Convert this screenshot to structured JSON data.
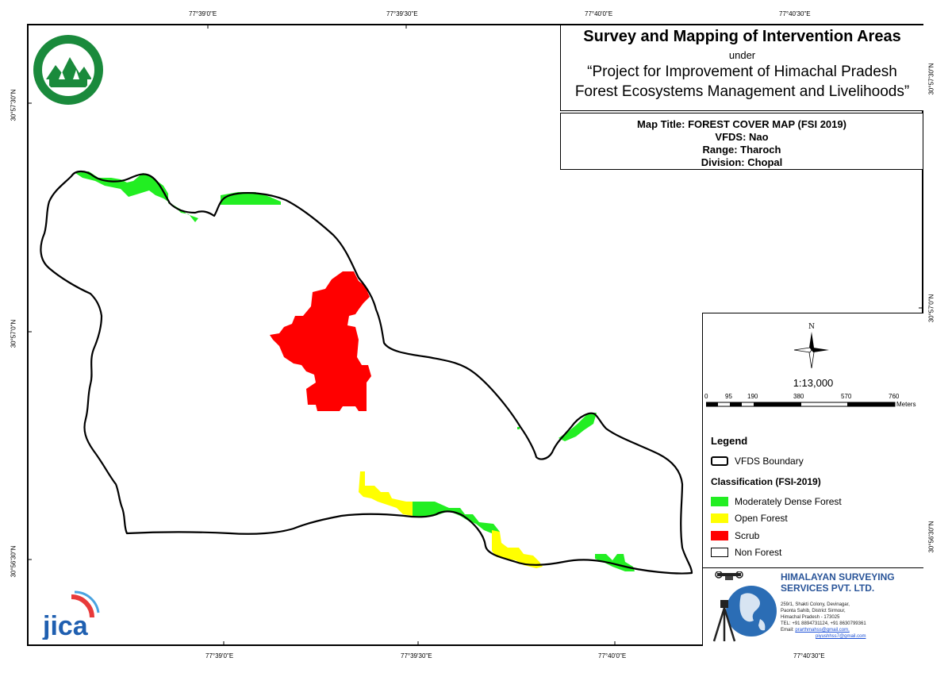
{
  "coords": {
    "top": [
      "77°39'0\"E",
      "77°39'30\"E",
      "77°40'0\"E",
      "77°40'30\"E"
    ],
    "bottom": [
      "77°39'0\"E",
      "77°39'30\"E",
      "77°40'0\"E",
      "77°40'30\"E"
    ],
    "left": [
      "30°57'30\"N",
      "30°57'0\"N",
      "30°56'30\"N"
    ],
    "right": [
      "30°57'30\"N",
      "30°57'0\"N",
      "30°56'30\"N"
    ]
  },
  "title": {
    "main": "Survey and Mapping of Intervention Areas",
    "under": "under",
    "project_line1": "“Project for Improvement of Himachal Pradesh",
    "project_line2": "Forest Ecosystems Management and Livelihoods”"
  },
  "info": {
    "map_title": "Map Title: FOREST COVER MAP (FSI 2019)",
    "vfds": "VFDS: Nao",
    "range": "Range: Tharoch",
    "division": "Division: Chopal"
  },
  "north_label": "N",
  "scale": {
    "ratio": "1:13,000",
    "ticks": [
      "0",
      "95",
      "190",
      "380",
      "570",
      "760"
    ],
    "unit": "Meters"
  },
  "legend": {
    "title": "Legend",
    "boundary_label": "VFDS Boundary",
    "classification_title": "Classification (FSI-2019)",
    "items": [
      {
        "label": "Moderately Dense Forest",
        "color": "#22ee22"
      },
      {
        "label": "Open Forest",
        "color": "#ffff00"
      },
      {
        "label": "Scrub",
        "color": "#ff0000"
      },
      {
        "label": "Non Forest",
        "color": "#ffffff"
      }
    ]
  },
  "company": {
    "name1": "HIMALAYAN SURVEYING",
    "name2": "SERVICES PVT. LTD.",
    "addr1": "259/1, Shakti Colony, Devinagar,",
    "addr2": "Paonta Sahib, District Sirmour,",
    "addr3": "Himachal Pradesh - 173025",
    "tel": "TEL: +91 8894731124, +91 8630799361",
    "email_label": "Email:",
    "email1": "prarthmahss@gmail.com,",
    "email2": "piyushhss7@gmail.com"
  },
  "jica_text": "jica",
  "colors": {
    "mdf": "#22ee22",
    "open": "#ffff00",
    "scrub": "#ff0000",
    "seal_green": "#1a8a3c",
    "company_blue": "#2a5599"
  }
}
